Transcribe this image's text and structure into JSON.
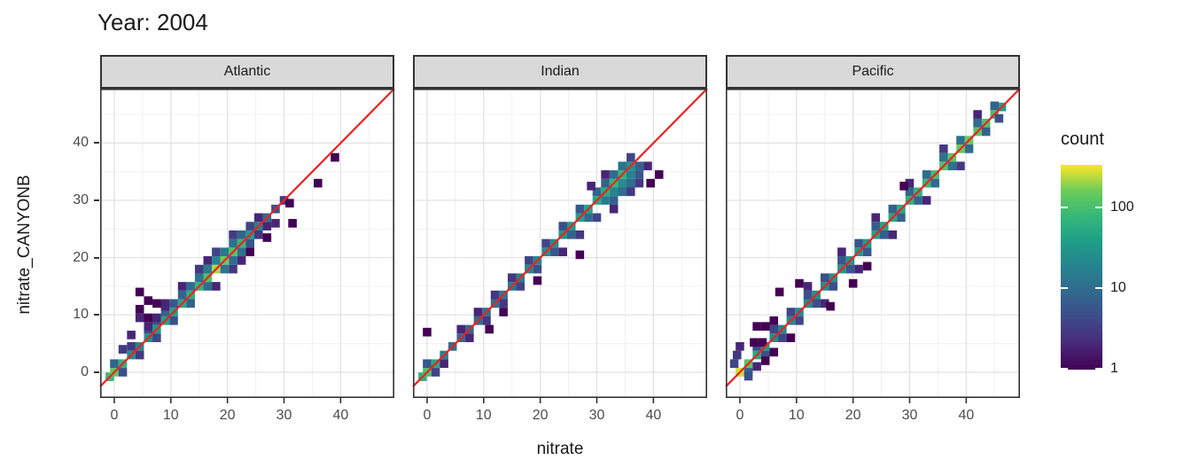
{
  "title": "Year: 2004",
  "axes": {
    "x_title": "nitrate",
    "y_title": "nitrate_CANYONB",
    "x_ticks": [
      0,
      10,
      20,
      30,
      40
    ],
    "y_ticks": [
      0,
      10,
      20,
      30,
      40
    ]
  },
  "legend": {
    "title": "count",
    "ticks": [
      1,
      10,
      100
    ],
    "max_count": 350,
    "scale": "log10",
    "viridis_stops": [
      "#440154",
      "#482878",
      "#3e4a89",
      "#31688e",
      "#26828e",
      "#1f9e89",
      "#35b779",
      "#6dcd59",
      "#fde725"
    ]
  },
  "colors": {
    "identity_line": "#ed2121",
    "panel_border": "#333333",
    "strip_fill": "#d9d9d9",
    "grid_major": "#e2e2e2",
    "grid_minor": "#f0f0f0",
    "tick_label": "#4d4d4d",
    "tick_mark": "#333333"
  },
  "chart_data": {
    "type": "heatmap",
    "subtype": "geom_bin2d",
    "title": "Year: 2004",
    "xlabel": "nitrate",
    "ylabel": "nitrate_CANYONB",
    "x_range": [
      -2.5,
      49.5
    ],
    "y_range": [
      -4.5,
      49.5
    ],
    "bin_size": 1.5,
    "identity_line": true,
    "legend_title": "count",
    "grid": true,
    "facets": [
      {
        "name": "Atlantic",
        "bins": [
          [
            -0.8,
            -0.8,
            90
          ],
          [
            0,
            0,
            140
          ],
          [
            1.5,
            1.5,
            70
          ],
          [
            3,
            3,
            25
          ],
          [
            4.5,
            4.5,
            20
          ],
          [
            6,
            6,
            28
          ],
          [
            7.5,
            7.5,
            35
          ],
          [
            9,
            9,
            45
          ],
          [
            10.5,
            10.5,
            40
          ],
          [
            12,
            12,
            50
          ],
          [
            13.5,
            13.5,
            60
          ],
          [
            15,
            15,
            75
          ],
          [
            16.5,
            16.5,
            110
          ],
          [
            18,
            18,
            230
          ],
          [
            19.5,
            19.5,
            160
          ],
          [
            21,
            21,
            120
          ],
          [
            22.5,
            22.5,
            80
          ],
          [
            24,
            24,
            35
          ],
          [
            25.5,
            25.5,
            18
          ],
          [
            27,
            27,
            10
          ],
          [
            28.5,
            28.5,
            5
          ],
          [
            30,
            30,
            3
          ],
          [
            0,
            1.5,
            8
          ],
          [
            1.5,
            0,
            5
          ],
          [
            3,
            4.5,
            3
          ],
          [
            6,
            7.5,
            4
          ],
          [
            7.5,
            9,
            5
          ],
          [
            9,
            10.5,
            8
          ],
          [
            10.5,
            12,
            6
          ],
          [
            12,
            13.5,
            8
          ],
          [
            13.5,
            15,
            10
          ],
          [
            15,
            16.5,
            12
          ],
          [
            16.5,
            18,
            15
          ],
          [
            18,
            19.5,
            20
          ],
          [
            19.5,
            21,
            15
          ],
          [
            21,
            22.5,
            12
          ],
          [
            22.5,
            24,
            8
          ],
          [
            24,
            25.5,
            4
          ],
          [
            25.5,
            27,
            2
          ],
          [
            4.5,
            3,
            3
          ],
          [
            7.5,
            6,
            4
          ],
          [
            10.5,
            9,
            5
          ],
          [
            13.5,
            12,
            8
          ],
          [
            16.5,
            15,
            10
          ],
          [
            19.5,
            18,
            12
          ],
          [
            21,
            19.5,
            10
          ],
          [
            22.5,
            21,
            12
          ],
          [
            24,
            22.5,
            6
          ],
          [
            25.5,
            24,
            3
          ],
          [
            27,
            25.5,
            2
          ],
          [
            9,
            12,
            2
          ],
          [
            12,
            15,
            2
          ],
          [
            15,
            18,
            3
          ],
          [
            16.5,
            19.5,
            2
          ],
          [
            18,
            21,
            4
          ],
          [
            21,
            24,
            3
          ],
          [
            18,
            15,
            2
          ],
          [
            21,
            18,
            3
          ],
          [
            22.5,
            19.5,
            2
          ],
          [
            24,
            21,
            1
          ],
          [
            4.5,
            14,
            1
          ],
          [
            6,
            12.5,
            1
          ],
          [
            4.5,
            11,
            1
          ],
          [
            4.5,
            9.5,
            2
          ],
          [
            6,
            9.5,
            1
          ],
          [
            7.5,
            9.5,
            2
          ],
          [
            6,
            8,
            2
          ],
          [
            3,
            6.5,
            2
          ],
          [
            1.5,
            4,
            3
          ],
          [
            9,
            11.5,
            2
          ],
          [
            7.5,
            12,
            1
          ],
          [
            31.5,
            26,
            1
          ],
          [
            36,
            33,
            1
          ],
          [
            39,
            37.5,
            1
          ],
          [
            28.5,
            26,
            2
          ],
          [
            27,
            23.5,
            1
          ],
          [
            31,
            29.5,
            1
          ]
        ]
      },
      {
        "name": "Indian",
        "bins": [
          [
            -0.8,
            -0.8,
            70
          ],
          [
            0,
            0,
            110
          ],
          [
            1.5,
            1.5,
            55
          ],
          [
            3,
            3,
            18
          ],
          [
            4.5,
            4.5,
            12
          ],
          [
            6,
            6,
            10
          ],
          [
            7.5,
            7.5,
            9
          ],
          [
            9,
            9,
            10
          ],
          [
            10.5,
            10.5,
            12
          ],
          [
            12,
            12,
            12
          ],
          [
            13.5,
            13.5,
            14
          ],
          [
            15,
            15,
            16
          ],
          [
            16.5,
            16.5,
            18
          ],
          [
            18,
            18,
            20
          ],
          [
            19.5,
            19.5,
            22
          ],
          [
            21,
            21,
            25
          ],
          [
            22.5,
            22.5,
            28
          ],
          [
            24,
            24,
            32
          ],
          [
            25.5,
            25.5,
            35
          ],
          [
            27,
            27,
            40
          ],
          [
            28.5,
            28.5,
            45
          ],
          [
            30,
            30,
            50
          ],
          [
            31.5,
            31.5,
            60
          ],
          [
            33,
            33,
            80
          ],
          [
            34.5,
            34.5,
            70
          ],
          [
            36,
            36,
            30
          ],
          [
            0,
            1.5,
            6
          ],
          [
            1.5,
            0,
            4
          ],
          [
            6,
            7.5,
            2
          ],
          [
            9,
            10.5,
            2
          ],
          [
            12,
            13.5,
            3
          ],
          [
            15,
            16.5,
            3
          ],
          [
            18,
            19.5,
            4
          ],
          [
            21,
            22.5,
            4
          ],
          [
            24,
            25.5,
            5
          ],
          [
            27,
            28.5,
            6
          ],
          [
            30,
            31.5,
            8
          ],
          [
            31.5,
            33,
            8
          ],
          [
            33,
            34.5,
            10
          ],
          [
            34.5,
            36,
            12
          ],
          [
            36,
            37.5,
            4
          ],
          [
            3,
            1.5,
            2
          ],
          [
            7.5,
            6,
            2
          ],
          [
            10.5,
            9,
            3
          ],
          [
            13.5,
            12,
            3
          ],
          [
            16.5,
            15,
            4
          ],
          [
            19.5,
            18,
            5
          ],
          [
            22.5,
            21,
            6
          ],
          [
            25.5,
            24,
            8
          ],
          [
            28.5,
            27,
            10
          ],
          [
            31.5,
            30,
            15
          ],
          [
            33,
            31.5,
            20
          ],
          [
            34.5,
            33,
            25
          ],
          [
            36,
            34.5,
            20
          ],
          [
            37.5,
            36,
            8
          ],
          [
            24,
            21,
            2
          ],
          [
            27,
            24,
            3
          ],
          [
            30,
            27,
            4
          ],
          [
            33,
            30,
            8
          ],
          [
            34.5,
            31.5,
            10
          ],
          [
            36,
            33,
            10
          ],
          [
            37.5,
            34.5,
            6
          ],
          [
            39,
            36,
            2
          ],
          [
            33,
            28.5,
            2
          ],
          [
            36,
            31.5,
            3
          ],
          [
            37.5,
            33,
            3
          ],
          [
            39.5,
            33,
            1
          ],
          [
            41,
            34.5,
            1
          ],
          [
            31.5,
            34.5,
            2
          ],
          [
            29,
            32.5,
            2
          ],
          [
            0,
            7,
            1
          ],
          [
            11,
            7.5,
            1
          ],
          [
            27,
            20.5,
            1
          ],
          [
            19.5,
            16,
            1
          ],
          [
            13.5,
            10.5,
            1
          ]
        ]
      },
      {
        "name": "Pacific",
        "bins": [
          [
            0,
            0,
            280
          ],
          [
            1.5,
            1.5,
            130
          ],
          [
            3,
            3,
            50
          ],
          [
            4.5,
            4.5,
            35
          ],
          [
            6,
            6,
            25
          ],
          [
            7.5,
            7.5,
            22
          ],
          [
            9,
            9,
            22
          ],
          [
            10.5,
            10.5,
            22
          ],
          [
            12,
            12,
            25
          ],
          [
            13.5,
            13.5,
            26
          ],
          [
            15,
            15,
            28
          ],
          [
            16.5,
            16.5,
            30
          ],
          [
            18,
            18,
            32
          ],
          [
            19.5,
            19.5,
            32
          ],
          [
            21,
            21,
            35
          ],
          [
            22.5,
            22.5,
            38
          ],
          [
            24,
            24,
            42
          ],
          [
            25.5,
            25.5,
            45
          ],
          [
            27,
            27,
            50
          ],
          [
            28.5,
            28.5,
            55
          ],
          [
            30,
            30,
            65
          ],
          [
            31.5,
            31.5,
            75
          ],
          [
            33,
            33,
            85
          ],
          [
            34.5,
            34.5,
            100
          ],
          [
            36,
            36,
            120
          ],
          [
            37.5,
            37.5,
            140
          ],
          [
            39,
            39,
            160
          ],
          [
            40.5,
            40.5,
            150
          ],
          [
            42,
            42,
            130
          ],
          [
            43.5,
            43.5,
            115
          ],
          [
            45,
            45,
            95
          ],
          [
            46.3,
            46.3,
            40
          ],
          [
            3,
            4.5,
            5
          ],
          [
            6,
            7.5,
            4
          ],
          [
            9,
            10.5,
            4
          ],
          [
            12,
            13.5,
            5
          ],
          [
            15,
            16.5,
            5
          ],
          [
            18,
            19.5,
            6
          ],
          [
            21,
            22.5,
            6
          ],
          [
            24,
            25.5,
            7
          ],
          [
            27,
            28.5,
            8
          ],
          [
            30,
            31.5,
            9
          ],
          [
            33,
            34.5,
            10
          ],
          [
            36,
            37.5,
            12
          ],
          [
            39,
            40.5,
            12
          ],
          [
            42,
            43.5,
            10
          ],
          [
            45,
            46.5,
            8
          ],
          [
            1.5,
            0,
            8
          ],
          [
            4.5,
            3,
            5
          ],
          [
            7.5,
            6,
            4
          ],
          [
            10.5,
            9,
            4
          ],
          [
            13.5,
            12,
            5
          ],
          [
            16.5,
            15,
            5
          ],
          [
            19.5,
            18,
            6
          ],
          [
            22.5,
            21,
            6
          ],
          [
            25.5,
            24,
            7
          ],
          [
            28.5,
            27,
            8
          ],
          [
            31.5,
            30,
            9
          ],
          [
            34.5,
            33,
            10
          ],
          [
            37.5,
            36,
            12
          ],
          [
            40.5,
            39,
            10
          ],
          [
            43.5,
            42,
            8
          ],
          [
            45.8,
            44.3,
            5
          ],
          [
            6,
            9,
            1
          ],
          [
            12,
            15,
            2
          ],
          [
            18,
            21,
            2
          ],
          [
            24,
            27,
            2
          ],
          [
            30,
            33,
            2
          ],
          [
            36,
            39,
            3
          ],
          [
            42,
            45,
            2
          ],
          [
            29,
            32.5,
            1
          ],
          [
            9,
            6,
            1
          ],
          [
            15,
            12,
            2
          ],
          [
            21,
            18,
            2
          ],
          [
            27,
            24,
            2
          ],
          [
            33,
            30,
            2
          ],
          [
            39,
            36,
            3
          ],
          [
            22.5,
            18.5,
            1
          ],
          [
            -0.5,
            3,
            3
          ],
          [
            0,
            4.5,
            2
          ],
          [
            2.5,
            5.2,
            1
          ],
          [
            4,
            5.2,
            1
          ],
          [
            3,
            1,
            2
          ],
          [
            4.5,
            2,
            1
          ],
          [
            6,
            3.5,
            1
          ],
          [
            1.5,
            -0.7,
            5
          ],
          [
            -1,
            1.5,
            4
          ],
          [
            3,
            8,
            1
          ],
          [
            4.5,
            8,
            1
          ],
          [
            7,
            14,
            1
          ],
          [
            10.5,
            15.5,
            1
          ],
          [
            16,
            11.5,
            1
          ],
          [
            20,
            15.5,
            1
          ]
        ]
      }
    ]
  }
}
